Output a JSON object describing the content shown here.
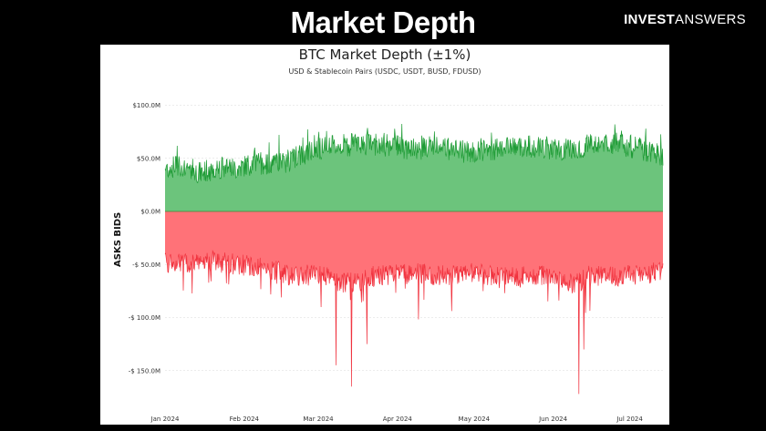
{
  "slide": {
    "title": "Market Depth",
    "brand_bold": "INVEST",
    "brand_light": "ANSWERS"
  },
  "chart_data": {
    "type": "area",
    "title": "BTC Market Depth (±1%)",
    "subtitle": "USD & Stablecoin Pairs (USDC, USDT, BUSD, FDUSD)",
    "ylabel": "ASKS BIDS",
    "xlabel": "",
    "ylim": [
      -175,
      110
    ],
    "y_ticks": [
      {
        "value": 100,
        "label": "$100.0M"
      },
      {
        "value": 50,
        "label": "$50.0M"
      },
      {
        "value": 0,
        "label": "$0.0M"
      },
      {
        "value": -50,
        "label": "-$ 50.0M"
      },
      {
        "value": -100,
        "label": "-$ 100.0M"
      },
      {
        "value": -150,
        "label": "-$ 150.0M"
      }
    ],
    "x_ticks": [
      "Jan 2024",
      "Feb 2024",
      "Mar 2024",
      "Apr 2024",
      "May 2024",
      "Jun 2024",
      "Jul 2024"
    ],
    "grid": true,
    "colors": {
      "bids_fill": "#6cc47c",
      "bids_line": "#1e9b35",
      "asks_fill": "#ff7278",
      "asks_line": "#f0313d"
    },
    "series": [
      {
        "name": "Bids",
        "unit": "$M",
        "x": [
          "2024-01-01",
          "2024-01-08",
          "2024-01-15",
          "2024-01-22",
          "2024-01-29",
          "2024-02-05",
          "2024-02-12",
          "2024-02-19",
          "2024-02-26",
          "2024-03-04",
          "2024-03-11",
          "2024-03-18",
          "2024-03-25",
          "2024-04-01",
          "2024-04-08",
          "2024-04-15",
          "2024-04-22",
          "2024-04-29",
          "2024-05-06",
          "2024-05-13",
          "2024-05-20",
          "2024-05-27",
          "2024-06-03",
          "2024-06-10",
          "2024-06-17",
          "2024-06-24",
          "2024-07-01",
          "2024-07-08",
          "2024-07-14"
        ],
        "values": [
          40,
          44,
          36,
          42,
          40,
          46,
          44,
          48,
          56,
          60,
          62,
          64,
          62,
          62,
          58,
          60,
          58,
          56,
          56,
          62,
          60,
          62,
          58,
          60,
          62,
          64,
          62,
          58,
          52
        ]
      },
      {
        "name": "Asks",
        "unit": "$M",
        "x": [
          "2024-01-01",
          "2024-01-08",
          "2024-01-15",
          "2024-01-22",
          "2024-01-29",
          "2024-02-05",
          "2024-02-12",
          "2024-02-19",
          "2024-02-26",
          "2024-03-04",
          "2024-03-11",
          "2024-03-18",
          "2024-03-25",
          "2024-04-01",
          "2024-04-08",
          "2024-04-15",
          "2024-04-22",
          "2024-04-29",
          "2024-05-06",
          "2024-05-13",
          "2024-05-20",
          "2024-05-27",
          "2024-06-03",
          "2024-06-10",
          "2024-06-17",
          "2024-06-24",
          "2024-07-01",
          "2024-07-08",
          "2024-07-14"
        ],
        "values": [
          -48,
          -50,
          -45,
          -48,
          -50,
          -52,
          -55,
          -60,
          -60,
          -62,
          -68,
          -65,
          -60,
          -60,
          -58,
          -60,
          -60,
          -58,
          -60,
          -62,
          -62,
          -60,
          -62,
          -68,
          -60,
          -62,
          -60,
          -58,
          -58
        ],
        "spikes": [
          {
            "x": "2024-03-08",
            "value": -145
          },
          {
            "x": "2024-03-14",
            "value": -165
          },
          {
            "x": "2024-03-20",
            "value": -125
          },
          {
            "x": "2024-06-11",
            "value": -172
          },
          {
            "x": "2024-06-13",
            "value": -130
          }
        ]
      }
    ]
  }
}
